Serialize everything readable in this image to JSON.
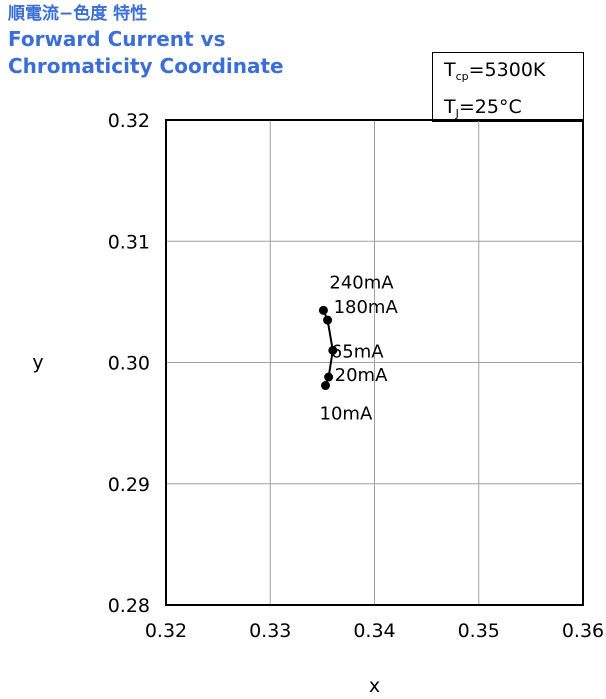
{
  "title": {
    "jp": "順電流−色度 特性",
    "en_line1": "Forward Current vs",
    "en_line2": "Chromaticity Coordinate"
  },
  "conditions": {
    "tcp_symbol": "T",
    "tcp_sub": "cp",
    "tcp_value": "=5300K",
    "tj_symbol": "T",
    "tj_sub": "J",
    "tj_value": "=25°C"
  },
  "colors": {
    "title": "#3b6fd6",
    "axis": "#000000",
    "grid": "#a0a0a0",
    "series": "#000000"
  },
  "chart_data": {
    "type": "scatter",
    "title": "Forward Current vs Chromaticity Coordinate",
    "xlabel": "x",
    "ylabel": "y",
    "xlim": [
      0.32,
      0.36
    ],
    "ylim": [
      0.28,
      0.32
    ],
    "xticks": [
      0.32,
      0.33,
      0.34,
      0.35,
      0.36
    ],
    "yticks": [
      0.28,
      0.29,
      0.3,
      0.31,
      0.32
    ],
    "xtick_labels": [
      "0.32",
      "0.33",
      "0.34",
      "0.35",
      "0.36"
    ],
    "ytick_labels": [
      "0.28",
      "0.29",
      "0.30",
      "0.31",
      "0.32"
    ],
    "grid": true,
    "series": [
      {
        "points": [
          {
            "label": "10mA",
            "x": 0.3353,
            "y": 0.2981
          },
          {
            "label": "20mA",
            "x": 0.3356,
            "y": 0.2988
          },
          {
            "label": "65mA",
            "x": 0.336,
            "y": 0.301
          },
          {
            "label": "180mA",
            "x": 0.3355,
            "y": 0.3035
          },
          {
            "label": "240mA",
            "x": 0.3351,
            "y": 0.3043
          }
        ]
      }
    ]
  }
}
